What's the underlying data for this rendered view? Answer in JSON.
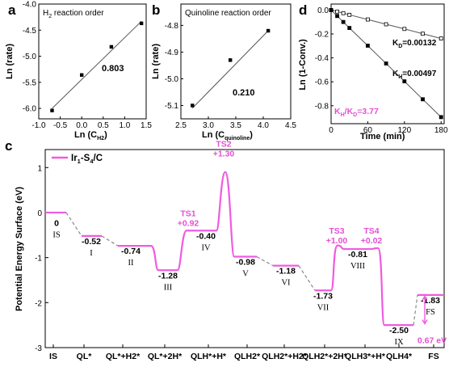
{
  "panels": {
    "a": {
      "letter": "a",
      "title": "H₂ reaction order",
      "xlabel": "Ln (C₂)",
      "xlabel_main": "Ln (C",
      "xlabel_sub": "H2",
      "ylabel": "Ln (rate)",
      "fit_label": "0.803"
    },
    "b": {
      "letter": "b",
      "title": "Quinoline reaction order",
      "xlabel_main": "Ln (C",
      "xlabel_sub": "quinoline",
      "ylabel": "Ln (rate)",
      "fit_label": "0.210"
    },
    "d": {
      "letter": "d",
      "xlabel": "Time (min)",
      "ylabel": "Ln (1-Conv.)",
      "kd_main": "K",
      "kd_sub": "D",
      "kd_value": "=0.00132",
      "kh_main": "K",
      "kh_sub": "H",
      "kh_value": "=0.00497",
      "ratio_k1": "K",
      "ratio_s1": "H",
      "ratio_slash": "/K",
      "ratio_s2": "D",
      "ratio_value": "=3.77"
    },
    "c": {
      "letter": "c",
      "ylabel": "Potential Energy Surface (eV)",
      "legend_main": "Ir",
      "legend_s1": "1",
      "legend_mid": "-S",
      "legend_s2": "4",
      "legend_end": "/C",
      "delta_label": "0.67 eV"
    }
  },
  "chart_data": [
    {
      "type": "scatter",
      "title": "H₂ reaction order",
      "xlabel": "Ln (CH2)",
      "ylabel": "Ln (rate)",
      "xlim": [
        -1.0,
        1.5
      ],
      "ylim": [
        -6.2,
        -4.0
      ],
      "xticks": [
        "-1.0",
        "-0.5",
        "0.0",
        "0.5",
        "1.0",
        "1.5"
      ],
      "yticks": [
        "-4.0",
        "-4.5",
        "-5.0",
        "-5.5",
        "-6.0"
      ],
      "x": [
        -0.69,
        0.0,
        0.69,
        1.39
      ],
      "y": [
        -6.04,
        -5.36,
        -4.82,
        -4.37
      ],
      "fit": {
        "x": [
          -0.69,
          1.39
        ],
        "y": [
          -6.0,
          -4.33
        ]
      },
      "annotation": "0.803"
    },
    {
      "type": "scatter",
      "title": "Quinoline reaction order",
      "xlabel": "Ln (Cquinoline)",
      "ylabel": "Ln (rate)",
      "xlim": [
        2.5,
        4.5
      ],
      "ylim": [
        -5.15,
        -4.72
      ],
      "xticks": [
        "2.5",
        "3.0",
        "3.5",
        "4.0",
        "4.5"
      ],
      "yticks": [
        "-4.8",
        "-4.9",
        "-5.0",
        "-5.1"
      ],
      "x": [
        2.71,
        3.4,
        4.09
      ],
      "y": [
        -5.1,
        -4.93,
        -4.82
      ],
      "fit": {
        "x": [
          2.71,
          4.09
        ],
        "y": [
          -5.11,
          -4.82
        ]
      },
      "annotation": "0.210"
    },
    {
      "type": "line",
      "xlabel": "Time (min)",
      "ylabel": "Ln (1-Conv.)",
      "xlim": [
        0,
        185
      ],
      "ylim": [
        -0.95,
        0.05
      ],
      "xticks": [
        "0",
        "60",
        "120",
        "180"
      ],
      "yticks": [
        "0.0",
        "-0.2",
        "-0.4",
        "-0.6",
        "-0.8"
      ],
      "series": [
        {
          "name": "KD=0.00132",
          "x": [
            0,
            10,
            20,
            30,
            60,
            90,
            120,
            150,
            180
          ],
          "y": [
            0,
            -0.013,
            -0.026,
            -0.04,
            -0.079,
            -0.119,
            -0.158,
            -0.198,
            -0.238
          ]
        },
        {
          "name": "KH=0.00497",
          "x": [
            0,
            10,
            20,
            30,
            60,
            90,
            120,
            150,
            180
          ],
          "y": [
            0,
            -0.05,
            -0.1,
            -0.15,
            -0.298,
            -0.447,
            -0.596,
            -0.746,
            -0.895
          ]
        }
      ],
      "annotation": "KH/KD=3.77"
    },
    {
      "type": "line",
      "ylabel": "Potential Energy Surface (eV)",
      "ylim": [
        -3.0,
        1.4
      ],
      "yticks": [
        "1",
        "0",
        "-1",
        "-2",
        "-3"
      ],
      "series_name": "Ir1-S4/C",
      "categories": [
        "IS",
        "QL*",
        "QL*+H2*",
        "QL*+2H*",
        "QLH*+H*",
        "QLH2*",
        "QLH2*+H2*",
        "QLH2*+2H*",
        "QLH3*+H*",
        "QLH4*",
        "FS"
      ],
      "levels": [
        {
          "label": "0",
          "roman": "IS",
          "value": 0
        },
        {
          "label": "-0.52",
          "roman": "I",
          "value": -0.52
        },
        {
          "label": "-0.74",
          "roman": "II",
          "value": -0.74
        },
        {
          "label": "-1.28",
          "roman": "III",
          "value": -1.28
        },
        {
          "label": "-0.40",
          "roman": "IV",
          "value": -0.4
        },
        {
          "label": "-0.98",
          "roman": "V",
          "value": -0.98
        },
        {
          "label": "-1.18",
          "roman": "VI",
          "value": -1.18
        },
        {
          "label": "-1.73",
          "roman": "VII",
          "value": -1.73
        },
        {
          "label": "-0.81",
          "roman": "VIII",
          "value": -0.81
        },
        {
          "label": "-2.50",
          "roman": "IX",
          "value": -2.5
        },
        {
          "label": "-1.83",
          "roman": "FS",
          "value": -1.83
        }
      ],
      "transition_states": [
        {
          "name": "TS1",
          "label": "+0.92"
        },
        {
          "name": "TS2",
          "label": "+1.30"
        },
        {
          "name": "TS3",
          "label": "+1.00"
        },
        {
          "name": "TS4",
          "label": "+0.02"
        }
      ],
      "delta": "0.67 eV",
      "accent": "#f05be0"
    }
  ]
}
